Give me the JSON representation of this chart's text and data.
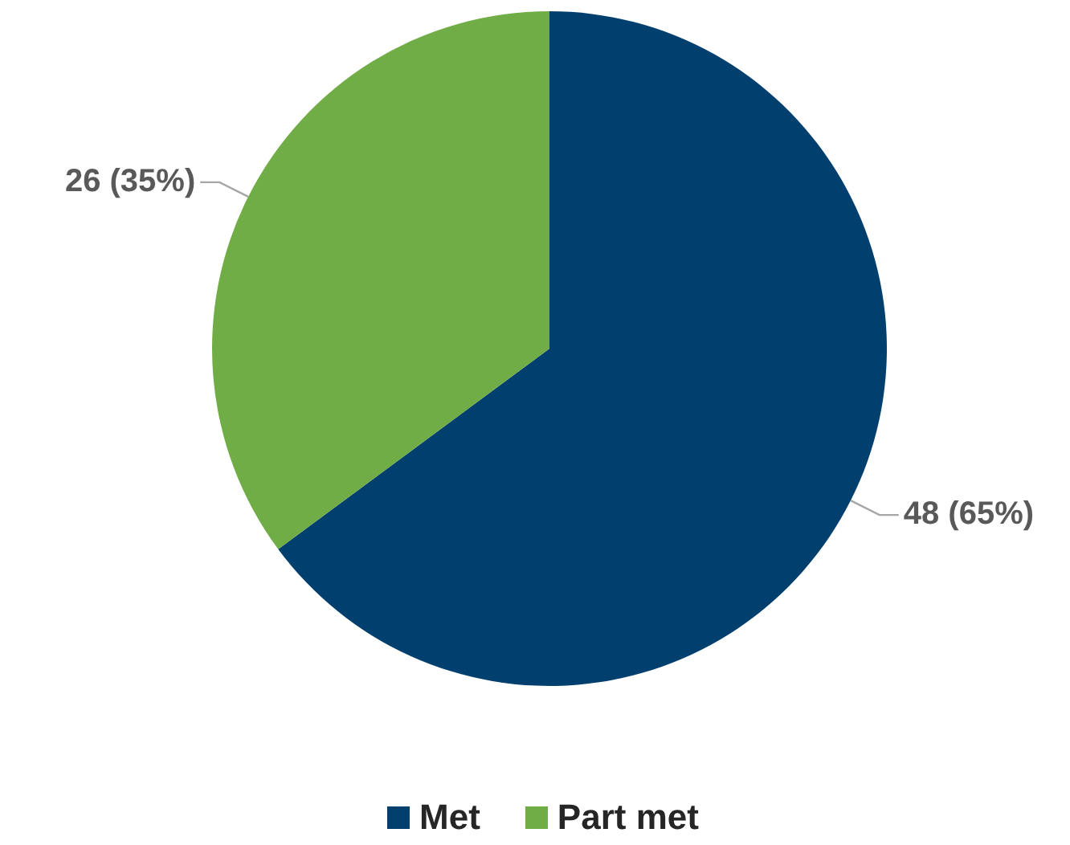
{
  "chart_data": {
    "type": "pie",
    "categories": [
      "Met",
      "Part met"
    ],
    "values": [
      48,
      26
    ],
    "colors": [
      "#003f6e",
      "#70ad47"
    ],
    "value_labels": [
      "48 (65%)",
      "26 (35%)"
    ],
    "legend": "bottom"
  }
}
